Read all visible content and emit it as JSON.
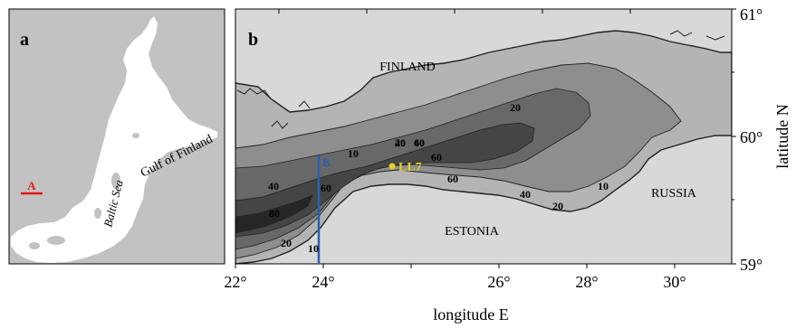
{
  "panel_a": {
    "label": "a",
    "baltic_sea_label": "Baltic Sea",
    "gulf_label": "Gulf of Finland",
    "transect_label": "A",
    "colors": {
      "land": "#c2c2c2",
      "sea": "#ffffff",
      "transect": "#e01818"
    }
  },
  "panel_b": {
    "label": "b",
    "finland_label": "FINLAND",
    "estonia_label": "ESTONIA",
    "russia_label": "RUSSIA",
    "station_label": "LL7",
    "section_label": "B",
    "depth_labels": [
      "20",
      "40",
      "60",
      "20",
      "40",
      "60",
      "10",
      "60",
      "40",
      "60",
      "80",
      "20",
      "10",
      "40",
      "20",
      "10"
    ],
    "colors": {
      "land": "#d8d8d8",
      "depth_0_20": "#b4b4b4",
      "depth_20_40": "#8e8e8e",
      "depth_40_60": "#686868",
      "depth_60_80": "#454545",
      "depth_80_plus": "#262626",
      "station": "#e6d21e",
      "section": "#2a5fb0"
    }
  },
  "axes": {
    "x_title": "longitude E",
    "y_title": "latitude N",
    "x_ticks": [
      "22°",
      "24°",
      "26°",
      "28°",
      "30°"
    ],
    "y_ticks": [
      "61°",
      "60°",
      "59°"
    ]
  }
}
